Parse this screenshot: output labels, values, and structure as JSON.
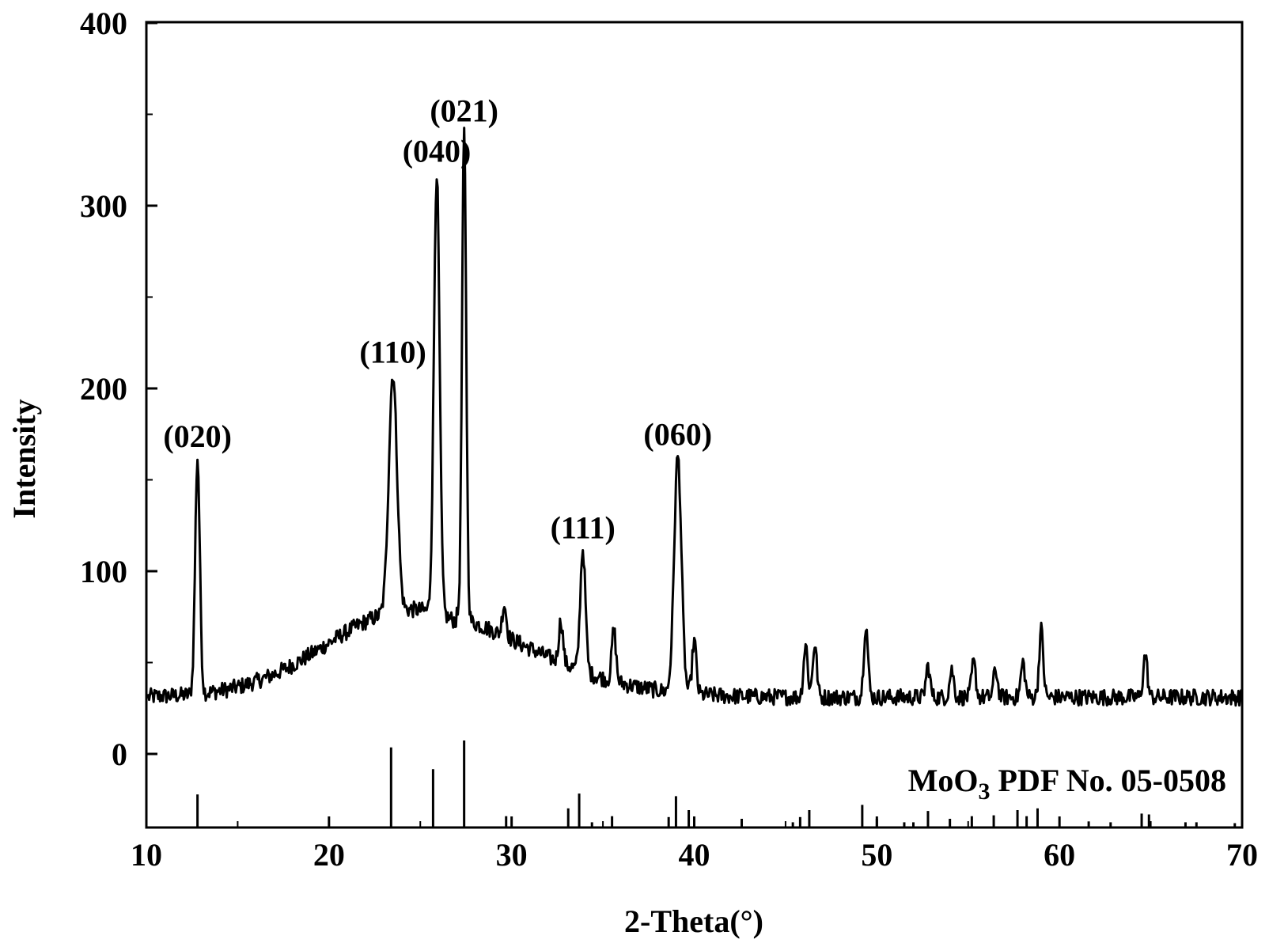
{
  "chart_data": {
    "type": "line",
    "xlabel": "2-Theta(°)",
    "ylabel": "Intensity",
    "xlim": [
      10,
      70
    ],
    "ylim": [
      -40,
      400
    ],
    "x_ticks": [
      10,
      20,
      30,
      40,
      50,
      60,
      70
    ],
    "y_ticks": [
      0,
      100,
      200,
      300,
      400
    ],
    "grid": false,
    "line_color": "#000000",
    "series": [
      {
        "values_description": "XRD pattern",
        "peaks": [
          {
            "x": 12.8,
            "y": 162,
            "label": "(020)"
          },
          {
            "x": 23.5,
            "y": 208,
            "label": "(110)"
          },
          {
            "x": 25.9,
            "y": 318,
            "label": "(040)"
          },
          {
            "x": 27.4,
            "y": 340,
            "label": "(021)"
          },
          {
            "x": 33.9,
            "y": 112,
            "label": "(111)"
          },
          {
            "x": 39.1,
            "y": 163,
            "label": "(060)"
          },
          {
            "x": 29.6,
            "y": 82
          },
          {
            "x": 32.7,
            "y": 73
          },
          {
            "x": 35.6,
            "y": 68
          },
          {
            "x": 40.0,
            "y": 62
          },
          {
            "x": 46.1,
            "y": 60
          },
          {
            "x": 46.6,
            "y": 60
          },
          {
            "x": 49.4,
            "y": 71
          },
          {
            "x": 52.8,
            "y": 48
          },
          {
            "x": 54.1,
            "y": 46
          },
          {
            "x": 55.3,
            "y": 50
          },
          {
            "x": 56.5,
            "y": 46
          },
          {
            "x": 58.0,
            "y": 50
          },
          {
            "x": 59.0,
            "y": 68
          },
          {
            "x": 64.7,
            "y": 54
          }
        ]
      }
    ],
    "reference": {
      "label_main": "MoO",
      "label_sub": "3",
      "label_rest": " PDF No. 05-0508",
      "sticks": [
        {
          "x": 12.8,
          "h": 0.38
        },
        {
          "x": 23.4,
          "h": 0.92
        },
        {
          "x": 25.7,
          "h": 0.67
        },
        {
          "x": 27.4,
          "h": 1.0
        },
        {
          "x": 29.7,
          "h": 0.13
        },
        {
          "x": 33.1,
          "h": 0.22
        },
        {
          "x": 33.7,
          "h": 0.39
        },
        {
          "x": 34.4,
          "h": 0.06
        },
        {
          "x": 35.5,
          "h": 0.13
        },
        {
          "x": 38.6,
          "h": 0.12
        },
        {
          "x": 39.0,
          "h": 0.36
        },
        {
          "x": 39.7,
          "h": 0.2
        },
        {
          "x": 42.6,
          "h": 0.1
        },
        {
          "x": 45.4,
          "h": 0.06
        },
        {
          "x": 45.8,
          "h": 0.12
        },
        {
          "x": 46.3,
          "h": 0.2
        },
        {
          "x": 49.2,
          "h": 0.26
        },
        {
          "x": 50.0,
          "h": 0.1
        },
        {
          "x": 51.5,
          "h": 0.06
        },
        {
          "x": 52.0,
          "h": 0.06
        },
        {
          "x": 52.8,
          "h": 0.19
        },
        {
          "x": 54.0,
          "h": 0.1
        },
        {
          "x": 55.2,
          "h": 0.13
        },
        {
          "x": 56.4,
          "h": 0.14
        },
        {
          "x": 57.7,
          "h": 0.2
        },
        {
          "x": 58.2,
          "h": 0.13
        },
        {
          "x": 58.8,
          "h": 0.22
        },
        {
          "x": 61.6,
          "h": 0.07
        },
        {
          "x": 62.8,
          "h": 0.06
        },
        {
          "x": 64.5,
          "h": 0.16
        },
        {
          "x": 64.9,
          "h": 0.15
        },
        {
          "x": 66.9,
          "h": 0.06
        },
        {
          "x": 67.5,
          "h": 0.06
        },
        {
          "x": 69.6,
          "h": 0.05
        }
      ]
    }
  }
}
